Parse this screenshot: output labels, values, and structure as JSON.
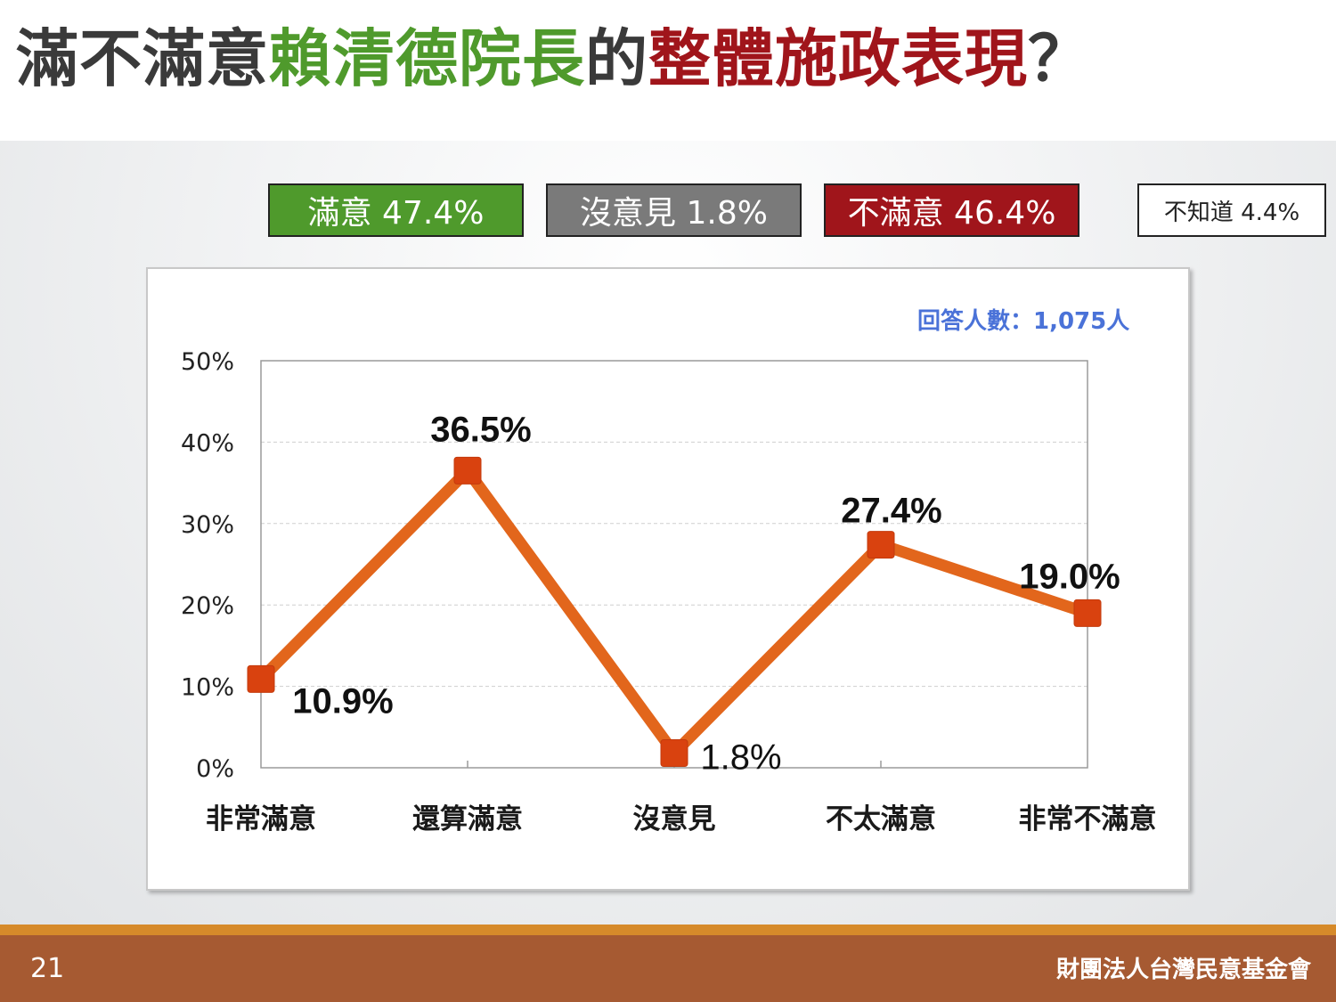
{
  "title": {
    "part1": "滿不滿意",
    "part2": "賴清德院長",
    "part3": "的",
    "part4": "整體施政表現",
    "part5": "？"
  },
  "summary": [
    {
      "label": "滿意 47.4%",
      "color": "#4f9a2c"
    },
    {
      "label": "沒意見 1.8%",
      "color": "#7a7a7a"
    },
    {
      "label": "不滿意 46.4%",
      "color": "#a0151b"
    },
    {
      "label": "不知道 4.4%",
      "color": "#ffffff"
    }
  ],
  "respondents": "回答人數：1,075人",
  "chart_data": {
    "type": "line",
    "categories": [
      "非常滿意",
      "還算滿意",
      "沒意見",
      "不太滿意",
      "非常不滿意"
    ],
    "values": [
      10.9,
      36.5,
      1.8,
      27.4,
      19.0
    ],
    "data_labels": [
      "10.9%",
      "36.5%",
      "1.8%",
      "27.4%",
      "19.0%"
    ],
    "yticks": [
      0,
      10,
      20,
      30,
      40,
      50
    ],
    "ytick_labels": [
      "0%",
      "10%",
      "20%",
      "30%",
      "40%",
      "50%"
    ],
    "ylim": [
      0,
      50
    ],
    "grid": true,
    "line_color": "#e2661c",
    "marker_color": "#d9420f"
  },
  "footer": {
    "page_number": "21",
    "organization": "財團法人台灣民意基金會"
  },
  "colors": {
    "title_text": "#3a3a3a",
    "title_green": "#4f9a2c",
    "title_red": "#a0151b",
    "respondents": "#4a72d8",
    "footer_bg": "#a65a32",
    "footer_accent": "#d68a2a"
  }
}
